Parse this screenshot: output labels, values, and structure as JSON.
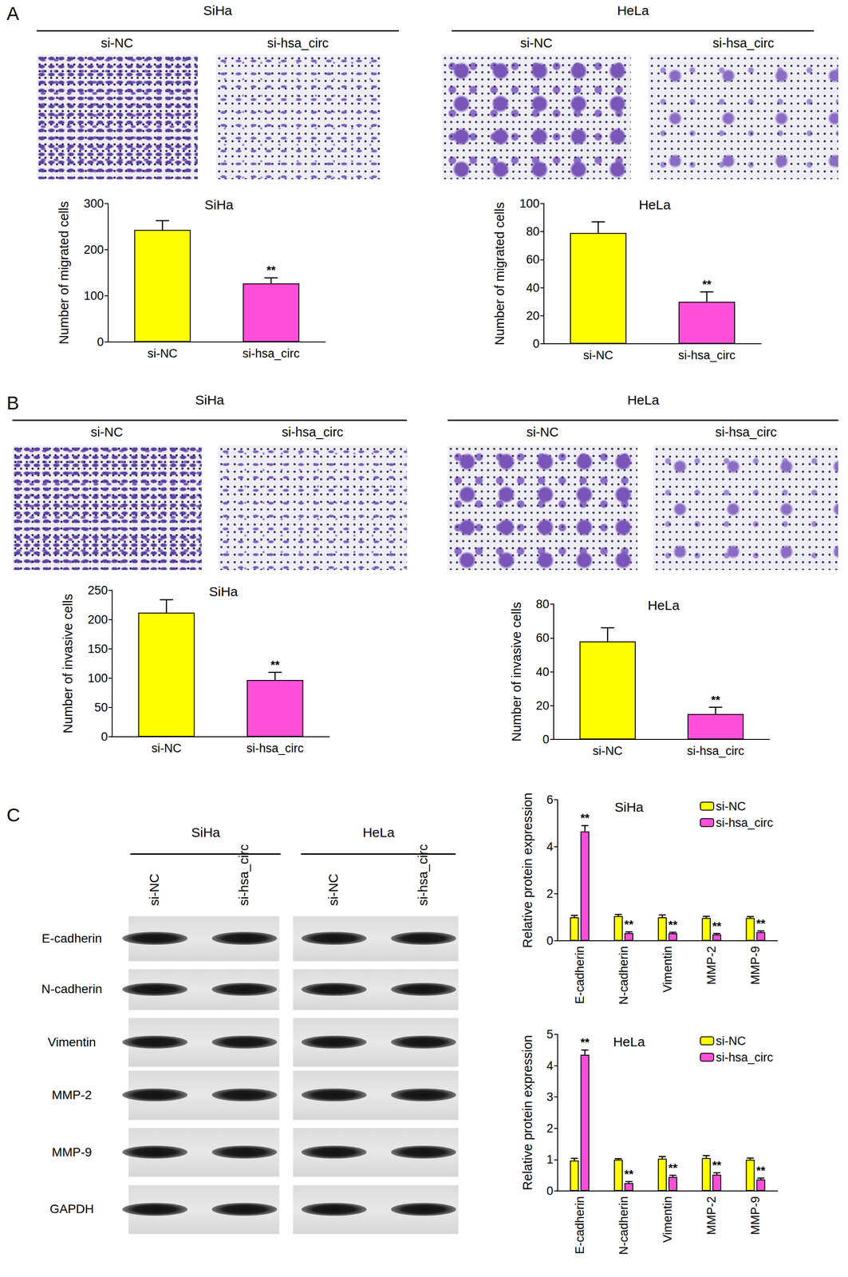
{
  "panel_labels": [
    "A",
    "B",
    "C"
  ],
  "transwell": {
    "cell_lines": [
      "SiHa",
      "HeLa"
    ],
    "groups": [
      "si-NC",
      "si-hsa_circ"
    ]
  },
  "western_blot": {
    "cell_lines": [
      "SiHa",
      "HeLa"
    ],
    "lanes": [
      "si-NC",
      "si-hsa_circ"
    ],
    "proteins": [
      "E-cadherin",
      "N-cadherin",
      "Vimentin",
      "MMP-2",
      "MMP-9",
      "GAPDH"
    ]
  },
  "chart_data": [
    {
      "type": "bar",
      "title": "SiHa",
      "y_label": "Number of migrated cells",
      "categories": [
        "si-NC",
        "si-hsa_circ"
      ],
      "values": [
        243,
        127
      ],
      "errors": [
        20,
        12
      ],
      "colors": [
        "#ffff00",
        "#ff4fd8"
      ],
      "ylim": [
        0,
        300
      ],
      "yticks": [
        0,
        100,
        200,
        300
      ],
      "grid": false,
      "annotations": [
        {
          "category": "si-hsa_circ",
          "text": "**"
        }
      ]
    },
    {
      "type": "bar",
      "title": "HeLa",
      "y_label": "Number of migrated cells",
      "categories": [
        "si-NC",
        "si-hsa_circ"
      ],
      "values": [
        79,
        30
      ],
      "errors": [
        8,
        7
      ],
      "colors": [
        "#ffff00",
        "#ff4fd8"
      ],
      "ylim": [
        0,
        100
      ],
      "yticks": [
        0,
        20,
        40,
        60,
        80,
        100
      ],
      "grid": false,
      "annotations": [
        {
          "category": "si-hsa_circ",
          "text": "**"
        }
      ]
    },
    {
      "type": "bar",
      "title": "SiHa",
      "y_label": "Number of invasive cells",
      "categories": [
        "si-NC",
        "si-hsa_circ"
      ],
      "values": [
        212,
        97
      ],
      "errors": [
        22,
        13
      ],
      "colors": [
        "#ffff00",
        "#ff4fd8"
      ],
      "ylim": [
        0,
        250
      ],
      "yticks": [
        0,
        50,
        100,
        150,
        200,
        250
      ],
      "grid": false,
      "annotations": [
        {
          "category": "si-hsa_circ",
          "text": "**"
        }
      ]
    },
    {
      "type": "bar",
      "title": "HeLa",
      "y_label": "Number of invasive cells",
      "categories": [
        "si-NC",
        "si-hsa_circ"
      ],
      "values": [
        58,
        15
      ],
      "errors": [
        8,
        4
      ],
      "colors": [
        "#ffff00",
        "#ff4fd8"
      ],
      "ylim": [
        0,
        80
      ],
      "yticks": [
        0,
        20,
        40,
        60,
        80
      ],
      "grid": false,
      "annotations": [
        {
          "category": "si-hsa_circ",
          "text": "**"
        }
      ]
    },
    {
      "type": "bar",
      "title": "SiHa",
      "y_label": "Relative protein expression",
      "categories": [
        "E-cadherin",
        "N-cadherin",
        "Vimentin",
        "MMP-2",
        "MMP-9"
      ],
      "series": [
        {
          "name": "si-NC",
          "color": "#ffff00",
          "values": [
            1.0,
            1.05,
            1.0,
            0.97,
            0.97
          ],
          "errors": [
            0.08,
            0.07,
            0.1,
            0.07,
            0.06
          ]
        },
        {
          "name": "si-hsa_circ",
          "color": "#ff4fd8",
          "values": [
            4.65,
            0.33,
            0.32,
            0.27,
            0.37
          ],
          "errors": [
            0.25,
            0.05,
            0.04,
            0.04,
            0.05
          ],
          "annotations": [
            {
              "category": "E-cadherin",
              "text": "**"
            },
            {
              "category": "N-cadherin",
              "text": "**"
            },
            {
              "category": "Vimentin",
              "text": "**"
            },
            {
              "category": "MMP-2",
              "text": "**"
            },
            {
              "category": "MMP-9",
              "text": "**"
            }
          ]
        }
      ],
      "ylim": [
        0,
        6
      ],
      "yticks": [
        0,
        2,
        4,
        6
      ],
      "grid": false,
      "legend": "upper right"
    },
    {
      "type": "bar",
      "title": "HeLa",
      "y_label": "Relative protein expression",
      "categories": [
        "E-cadherin",
        "N-cadherin",
        "Vimentin",
        "MMP-2",
        "MMP-9"
      ],
      "series": [
        {
          "name": "si-NC",
          "color": "#ffff00",
          "values": [
            0.97,
            1.0,
            1.03,
            1.05,
            1.0
          ],
          "errors": [
            0.07,
            0.03,
            0.07,
            0.08,
            0.05
          ]
        },
        {
          "name": "si-hsa_circ",
          "color": "#ff4fd8",
          "values": [
            4.35,
            0.25,
            0.45,
            0.52,
            0.37
          ],
          "errors": [
            0.15,
            0.05,
            0.05,
            0.06,
            0.04
          ],
          "annotations": [
            {
              "category": "E-cadherin",
              "text": "**"
            },
            {
              "category": "N-cadherin",
              "text": "**"
            },
            {
              "category": "Vimentin",
              "text": "**"
            },
            {
              "category": "MMP-2",
              "text": "**"
            },
            {
              "category": "MMP-9",
              "text": "**"
            }
          ]
        }
      ],
      "ylim": [
        0,
        5
      ],
      "yticks": [
        0,
        1,
        2,
        3,
        4,
        5
      ],
      "grid": false,
      "legend": "upper right"
    }
  ]
}
